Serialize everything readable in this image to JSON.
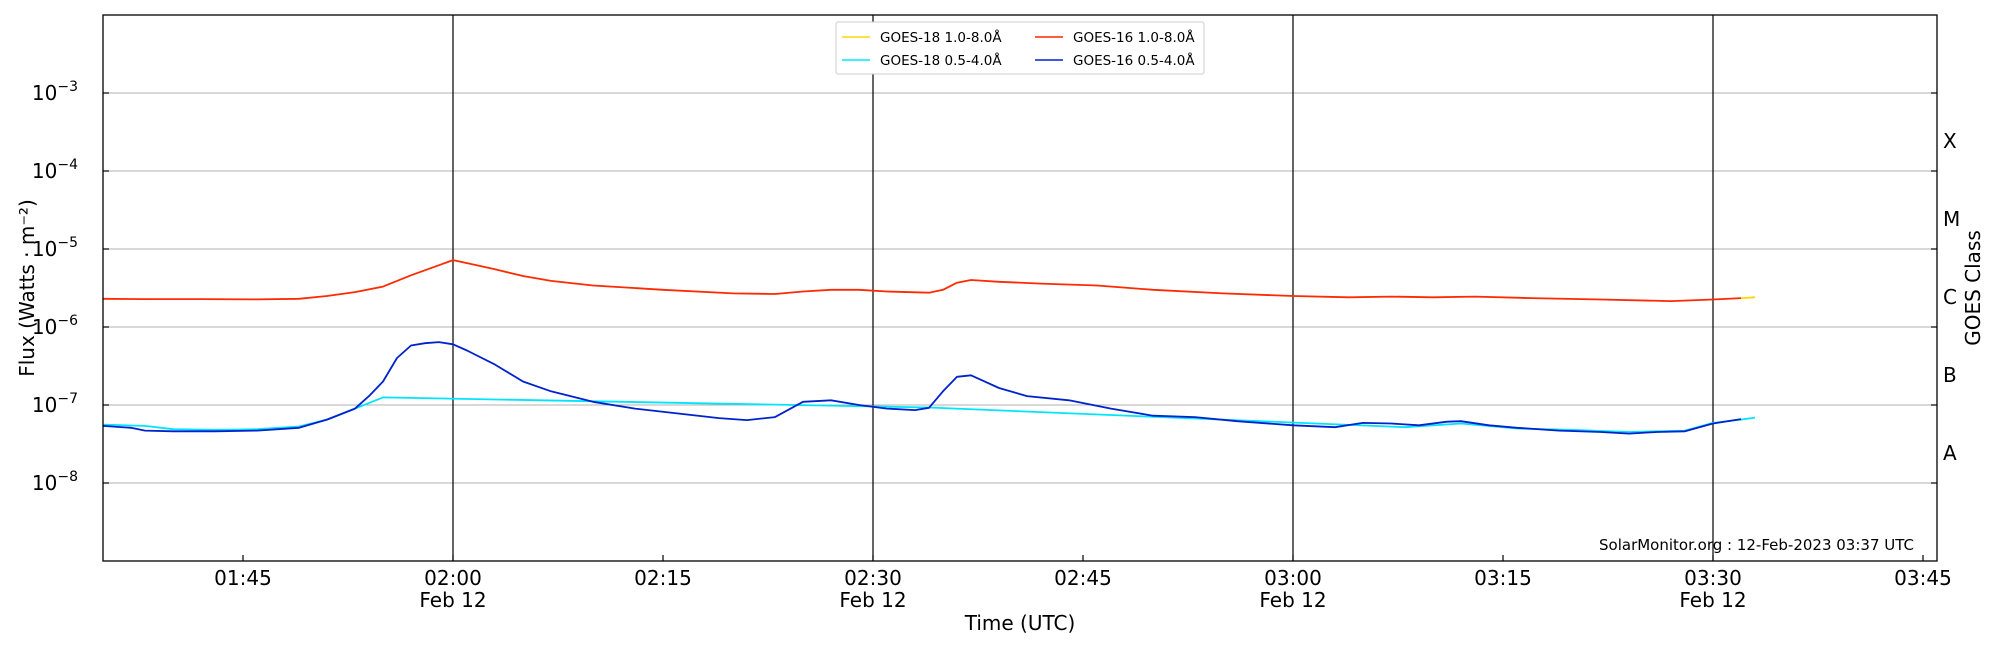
{
  "chart_data": {
    "type": "line",
    "xlabel": "Time (UTC)",
    "ylabel": "Flux (Watts · m⁻²)",
    "right_axis_label": "GOES Class",
    "x_range": [
      "01:35",
      "03:46"
    ],
    "ylim": [
      1e-09,
      0.01
    ],
    "y_scale": "log",
    "grid": "horizontal",
    "legend_position": "top-center",
    "footer": "SolarMonitor.org : 12-Feb-2023 03:37 UTC",
    "x_ticks": [
      {
        "time": "01:45"
      },
      {
        "time": "02:00",
        "date": "Feb 12"
      },
      {
        "time": "02:15"
      },
      {
        "time": "02:30",
        "date": "Feb 12"
      },
      {
        "time": "02:45"
      },
      {
        "time": "03:00",
        "date": "Feb 12"
      },
      {
        "time": "03:15"
      },
      {
        "time": "03:30",
        "date": "Feb 12"
      },
      {
        "time": "03:45"
      }
    ],
    "y_ticks": [
      {
        "base": "10",
        "exp": "−3",
        "value": 0.001
      },
      {
        "base": "10",
        "exp": "−4",
        "value": 0.0001
      },
      {
        "base": "10",
        "exp": "−5",
        "value": 1e-05
      },
      {
        "base": "10",
        "exp": "−6",
        "value": 1e-06
      },
      {
        "base": "10",
        "exp": "−7",
        "value": 1e-07
      },
      {
        "base": "10",
        "exp": "−8",
        "value": 1e-08
      }
    ],
    "goes_classes": [
      {
        "label": "X",
        "value": 0.00025
      },
      {
        "label": "M",
        "value": 2.5e-05
      },
      {
        "label": "C",
        "value": 2.5e-06
      },
      {
        "label": "B",
        "value": 2.5e-07
      },
      {
        "label": "A",
        "value": 2.5e-08
      }
    ],
    "vertical_lines": [
      "02:00",
      "02:30",
      "03:00",
      "03:30"
    ],
    "series": [
      {
        "name": "GOES-18 1.0-8.0Å",
        "color": "#ffd700",
        "points": [
          [
            "03:32",
            2.35e-06
          ],
          [
            "03:33",
            2.4e-06
          ]
        ]
      },
      {
        "name": "GOES-16 1.0-8.0Å",
        "color": "#ff2a00",
        "points": [
          [
            "01:35",
            2.3e-06
          ],
          [
            "01:38",
            2.28e-06
          ],
          [
            "01:42",
            2.28e-06
          ],
          [
            "01:46",
            2.26e-06
          ],
          [
            "01:49",
            2.3e-06
          ],
          [
            "01:51",
            2.5e-06
          ],
          [
            "01:53",
            2.8e-06
          ],
          [
            "01:55",
            3.3e-06
          ],
          [
            "01:57",
            4.6e-06
          ],
          [
            "01:59",
            6.2e-06
          ],
          [
            "02:00",
            7.2e-06
          ],
          [
            "02:01",
            6.6e-06
          ],
          [
            "02:03",
            5.5e-06
          ],
          [
            "02:05",
            4.5e-06
          ],
          [
            "02:07",
            3.9e-06
          ],
          [
            "02:10",
            3.4e-06
          ],
          [
            "02:15",
            3e-06
          ],
          [
            "02:20",
            2.7e-06
          ],
          [
            "02:23",
            2.65e-06
          ],
          [
            "02:25",
            2.85e-06
          ],
          [
            "02:27",
            3e-06
          ],
          [
            "02:29",
            3e-06
          ],
          [
            "02:31",
            2.85e-06
          ],
          [
            "02:34",
            2.75e-06
          ],
          [
            "02:35",
            3e-06
          ],
          [
            "02:36",
            3.7e-06
          ],
          [
            "02:37",
            4e-06
          ],
          [
            "02:39",
            3.8e-06
          ],
          [
            "02:42",
            3.6e-06
          ],
          [
            "02:46",
            3.4e-06
          ],
          [
            "02:50",
            3e-06
          ],
          [
            "02:55",
            2.7e-06
          ],
          [
            "03:00",
            2.5e-06
          ],
          [
            "03:04",
            2.4e-06
          ],
          [
            "03:07",
            2.45e-06
          ],
          [
            "03:10",
            2.4e-06
          ],
          [
            "03:13",
            2.45e-06
          ],
          [
            "03:17",
            2.35e-06
          ],
          [
            "03:22",
            2.25e-06
          ],
          [
            "03:27",
            2.15e-06
          ],
          [
            "03:30",
            2.25e-06
          ],
          [
            "03:32",
            2.35e-06
          ]
        ]
      },
      {
        "name": "GOES-18 0.5-4.0Å",
        "color": "#00e5ff",
        "points": [
          [
            "01:35",
            5.6e-08
          ],
          [
            "01:38",
            5.4e-08
          ],
          [
            "01:40",
            4.9e-08
          ],
          [
            "01:43",
            4.8e-08
          ],
          [
            "01:46",
            4.9e-08
          ],
          [
            "01:49",
            5.3e-08
          ],
          [
            "01:51",
            6.5e-08
          ],
          [
            "01:53",
            9e-08
          ],
          [
            "01:55",
            1.25e-07
          ],
          [
            "02:34",
            9.3e-08
          ],
          [
            "03:08",
            5.2e-08
          ],
          [
            "03:12",
            5.8e-08
          ],
          [
            "03:16",
            5e-08
          ],
          [
            "03:20",
            4.8e-08
          ],
          [
            "03:24",
            4.5e-08
          ],
          [
            "03:26",
            4.6e-08
          ],
          [
            "03:28",
            4.7e-08
          ],
          [
            "03:30",
            5.9e-08
          ],
          [
            "03:32",
            6.5e-08
          ],
          [
            "03:33",
            6.9e-08
          ]
        ]
      },
      {
        "name": "GOES-16 0.5-4.0Å",
        "color": "#0022cc",
        "points": [
          [
            "01:35",
            5.4e-08
          ],
          [
            "01:37",
            5.1e-08
          ],
          [
            "01:38",
            4.7e-08
          ],
          [
            "01:40",
            4.6e-08
          ],
          [
            "01:43",
            4.6e-08
          ],
          [
            "01:46",
            4.7e-08
          ],
          [
            "01:49",
            5.1e-08
          ],
          [
            "01:51",
            6.5e-08
          ],
          [
            "01:53",
            9e-08
          ],
          [
            "01:54",
            1.3e-07
          ],
          [
            "01:55",
            2e-07
          ],
          [
            "01:56",
            4e-07
          ],
          [
            "01:57",
            5.8e-07
          ],
          [
            "01:58",
            6.2e-07
          ],
          [
            "01:59",
            6.4e-07
          ],
          [
            "02:00",
            6e-07
          ],
          [
            "02:01",
            5e-07
          ],
          [
            "02:03",
            3.3e-07
          ],
          [
            "02:05",
            2e-07
          ],
          [
            "02:07",
            1.5e-07
          ],
          [
            "02:10",
            1.1e-07
          ],
          [
            "02:13",
            9e-08
          ],
          [
            "02:16",
            7.8e-08
          ],
          [
            "02:19",
            6.8e-08
          ],
          [
            "02:21",
            6.4e-08
          ],
          [
            "02:23",
            7e-08
          ],
          [
            "02:25",
            1.1e-07
          ],
          [
            "02:27",
            1.15e-07
          ],
          [
            "02:29",
            1e-07
          ],
          [
            "02:31",
            9e-08
          ],
          [
            "02:33",
            8.6e-08
          ],
          [
            "02:34",
            9.2e-08
          ],
          [
            "02:35",
            1.5e-07
          ],
          [
            "02:36",
            2.3e-07
          ],
          [
            "02:37",
            2.4e-07
          ],
          [
            "02:39",
            1.65e-07
          ],
          [
            "02:41",
            1.3e-07
          ],
          [
            "02:44",
            1.15e-07
          ],
          [
            "02:47",
            9e-08
          ],
          [
            "02:50",
            7.3e-08
          ],
          [
            "02:53",
            7e-08
          ],
          [
            "02:56",
            6.2e-08
          ],
          [
            "03:00",
            5.5e-08
          ],
          [
            "03:03",
            5.2e-08
          ],
          [
            "03:05",
            5.9e-08
          ],
          [
            "03:07",
            5.8e-08
          ],
          [
            "03:09",
            5.5e-08
          ],
          [
            "03:11",
            6.1e-08
          ],
          [
            "03:12",
            6.2e-08
          ],
          [
            "03:14",
            5.5e-08
          ],
          [
            "03:16",
            5.1e-08
          ],
          [
            "03:19",
            4.7e-08
          ],
          [
            "03:22",
            4.5e-08
          ],
          [
            "03:24",
            4.3e-08
          ],
          [
            "03:26",
            4.5e-08
          ],
          [
            "03:28",
            4.6e-08
          ],
          [
            "03:30",
            5.8e-08
          ],
          [
            "03:32",
            6.6e-08
          ]
        ]
      }
    ]
  }
}
